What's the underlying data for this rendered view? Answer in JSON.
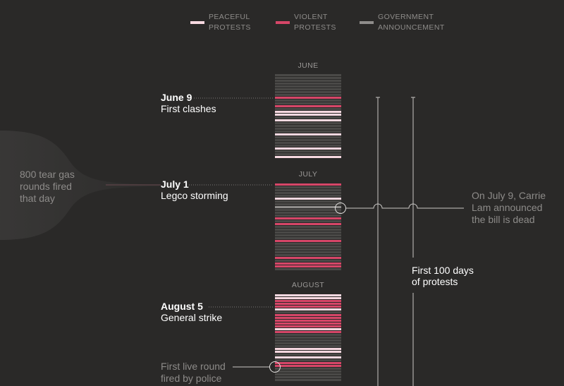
{
  "legend": {
    "peaceful": {
      "line1": "PEACEFUL",
      "line2": "PROTESTS",
      "color": "#f7d8e0"
    },
    "violent": {
      "line1": "VIOLENT",
      "line2": "PROTESTS",
      "color": "#d64668"
    },
    "government": {
      "line1": "GOVERNMENT",
      "line2": "ANNOUNCEMENT",
      "color": "#8f8d8b"
    }
  },
  "months": [
    "JUNE",
    "JULY",
    "AUGUST"
  ],
  "events": [
    {
      "date": "June 9",
      "desc": "First clashes"
    },
    {
      "date": "July 1",
      "desc": "Legco storming"
    },
    {
      "date": "August 5",
      "desc": "General strike"
    }
  ],
  "notes": {
    "tear_gas": {
      "line1": "800 tear gas",
      "line2": "rounds fired",
      "line3": "that day"
    },
    "announcement": {
      "line1": "On July 9, Carrie",
      "line2": "Lam announced",
      "line3": "the bill is dead"
    },
    "live_round": {
      "line1": "First live round",
      "line2": "fired by police"
    },
    "hundred_days": {
      "line1": "First 100 days",
      "line2": "of protests"
    }
  },
  "chart_data": {
    "type": "table",
    "description_of_encoding": "one stripe per day; colour = day type",
    "categories": [
      "peaceful",
      "violent",
      "government",
      "none"
    ],
    "months": [
      {
        "name": "JUNE",
        "days": [
          "none",
          "none",
          "none",
          "none",
          "none",
          "none",
          "none",
          "none",
          "violent",
          "none",
          "none",
          "violent",
          "none",
          "peaceful",
          "peaceful",
          "none",
          "peaceful",
          "none",
          "none",
          "none",
          "none",
          "peaceful",
          "none",
          "none",
          "none",
          "none",
          "peaceful",
          "none",
          "none",
          "peaceful"
        ]
      },
      {
        "name": "JULY",
        "days": [
          "violent",
          "none",
          "none",
          "none",
          "none",
          "peaceful",
          "none",
          "none",
          "government",
          "none",
          "none",
          "none",
          "violent",
          "none",
          "violent",
          "none",
          "none",
          "none",
          "none",
          "none",
          "violent",
          "none",
          "none",
          "none",
          "none",
          "none",
          "violent",
          "none",
          "violent",
          "violent",
          "none"
        ]
      },
      {
        "name": "AUGUST",
        "days": [
          "peaceful",
          "peaceful",
          "violent",
          "violent",
          "violent",
          "peaceful",
          "none",
          "violent",
          "violent",
          "violent",
          "violent",
          "violent",
          "peaceful",
          "violent",
          "none",
          "none",
          "none",
          "none",
          "none",
          "peaceful",
          "peaceful",
          "none",
          "peaceful",
          "none",
          "violent",
          "violent",
          "none",
          "none",
          "none",
          "none",
          "none"
        ]
      }
    ]
  }
}
